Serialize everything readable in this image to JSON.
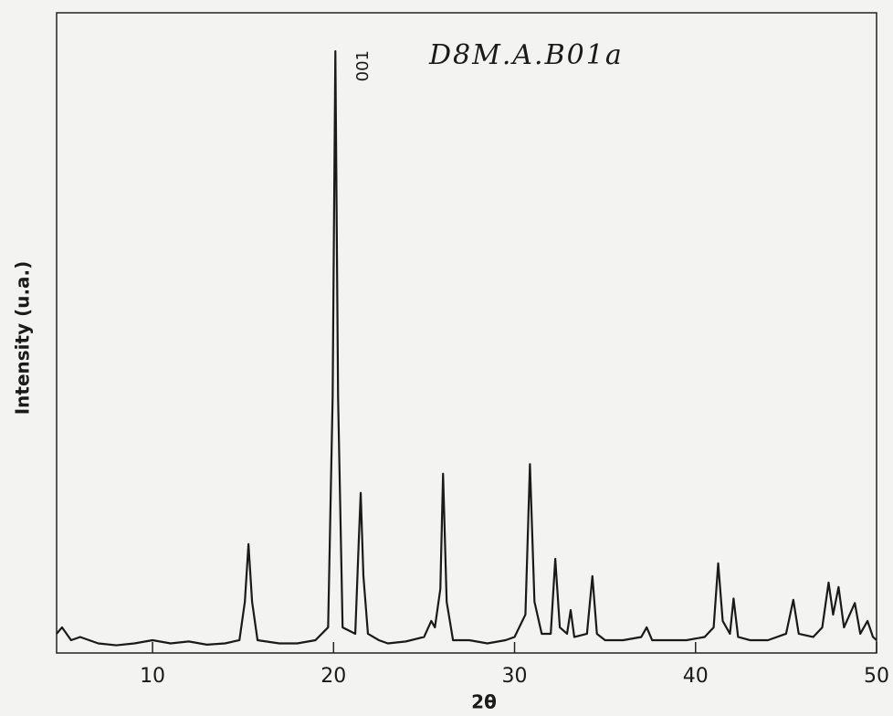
{
  "chart_data": {
    "type": "line",
    "title": "D8M.A.B01a",
    "peak_label": "001",
    "x_label": "2θ",
    "y_label": "Intensity (u.a.)",
    "xlim": [
      4.7,
      50
    ],
    "ylim": [
      0,
      100
    ],
    "xticks": [
      10,
      20,
      30,
      40,
      50
    ],
    "series": [
      {
        "name": "Intensity",
        "color": "#1a1a1a",
        "x": [
          4.7,
          5,
          5.5,
          6,
          7,
          8,
          9,
          10,
          11,
          12,
          13,
          14,
          14.8,
          15.1,
          15.3,
          15.5,
          15.8,
          17,
          18,
          19,
          19.7,
          19.95,
          20.1,
          20.25,
          20.5,
          21.2,
          21.4,
          21.5,
          21.65,
          21.9,
          22.5,
          23,
          24,
          25,
          25.4,
          25.6,
          25.9,
          26.05,
          26.25,
          26.6,
          27.5,
          28.5,
          29.5,
          30,
          30.6,
          30.85,
          31.1,
          31.5,
          32,
          32.25,
          32.5,
          32.9,
          33.1,
          33.3,
          34,
          34.3,
          34.55,
          35,
          36,
          37,
          37.3,
          37.6,
          38.5,
          39.5,
          40.5,
          41,
          41.25,
          41.5,
          41.9,
          42.1,
          42.35,
          43,
          44,
          45,
          45.4,
          45.7,
          46.5,
          47,
          47.35,
          47.6,
          47.9,
          48.2,
          48.8,
          49.1,
          49.5,
          49.8,
          50
        ],
        "values": [
          3,
          4,
          2,
          2.5,
          1.5,
          1.2,
          1.5,
          2,
          1.5,
          1.8,
          1.3,
          1.5,
          2,
          8,
          17,
          8,
          2,
          1.5,
          1.5,
          2,
          4,
          40,
          94,
          40,
          4,
          3,
          18,
          25,
          12,
          3,
          2,
          1.5,
          1.8,
          2.5,
          5,
          4,
          10,
          28,
          8,
          2,
          2,
          1.5,
          2,
          2.5,
          6,
          29.5,
          8,
          3,
          3,
          14.7,
          4,
          3,
          6.7,
          2.5,
          3,
          12,
          3,
          2,
          2,
          2.5,
          4,
          2,
          2,
          2,
          2.5,
          4,
          14,
          5,
          3,
          8.5,
          2.5,
          2,
          2,
          3,
          8.3,
          3,
          2.5,
          4,
          11,
          6,
          10.3,
          4,
          7.8,
          3,
          5,
          2.5,
          2
        ]
      }
    ]
  }
}
